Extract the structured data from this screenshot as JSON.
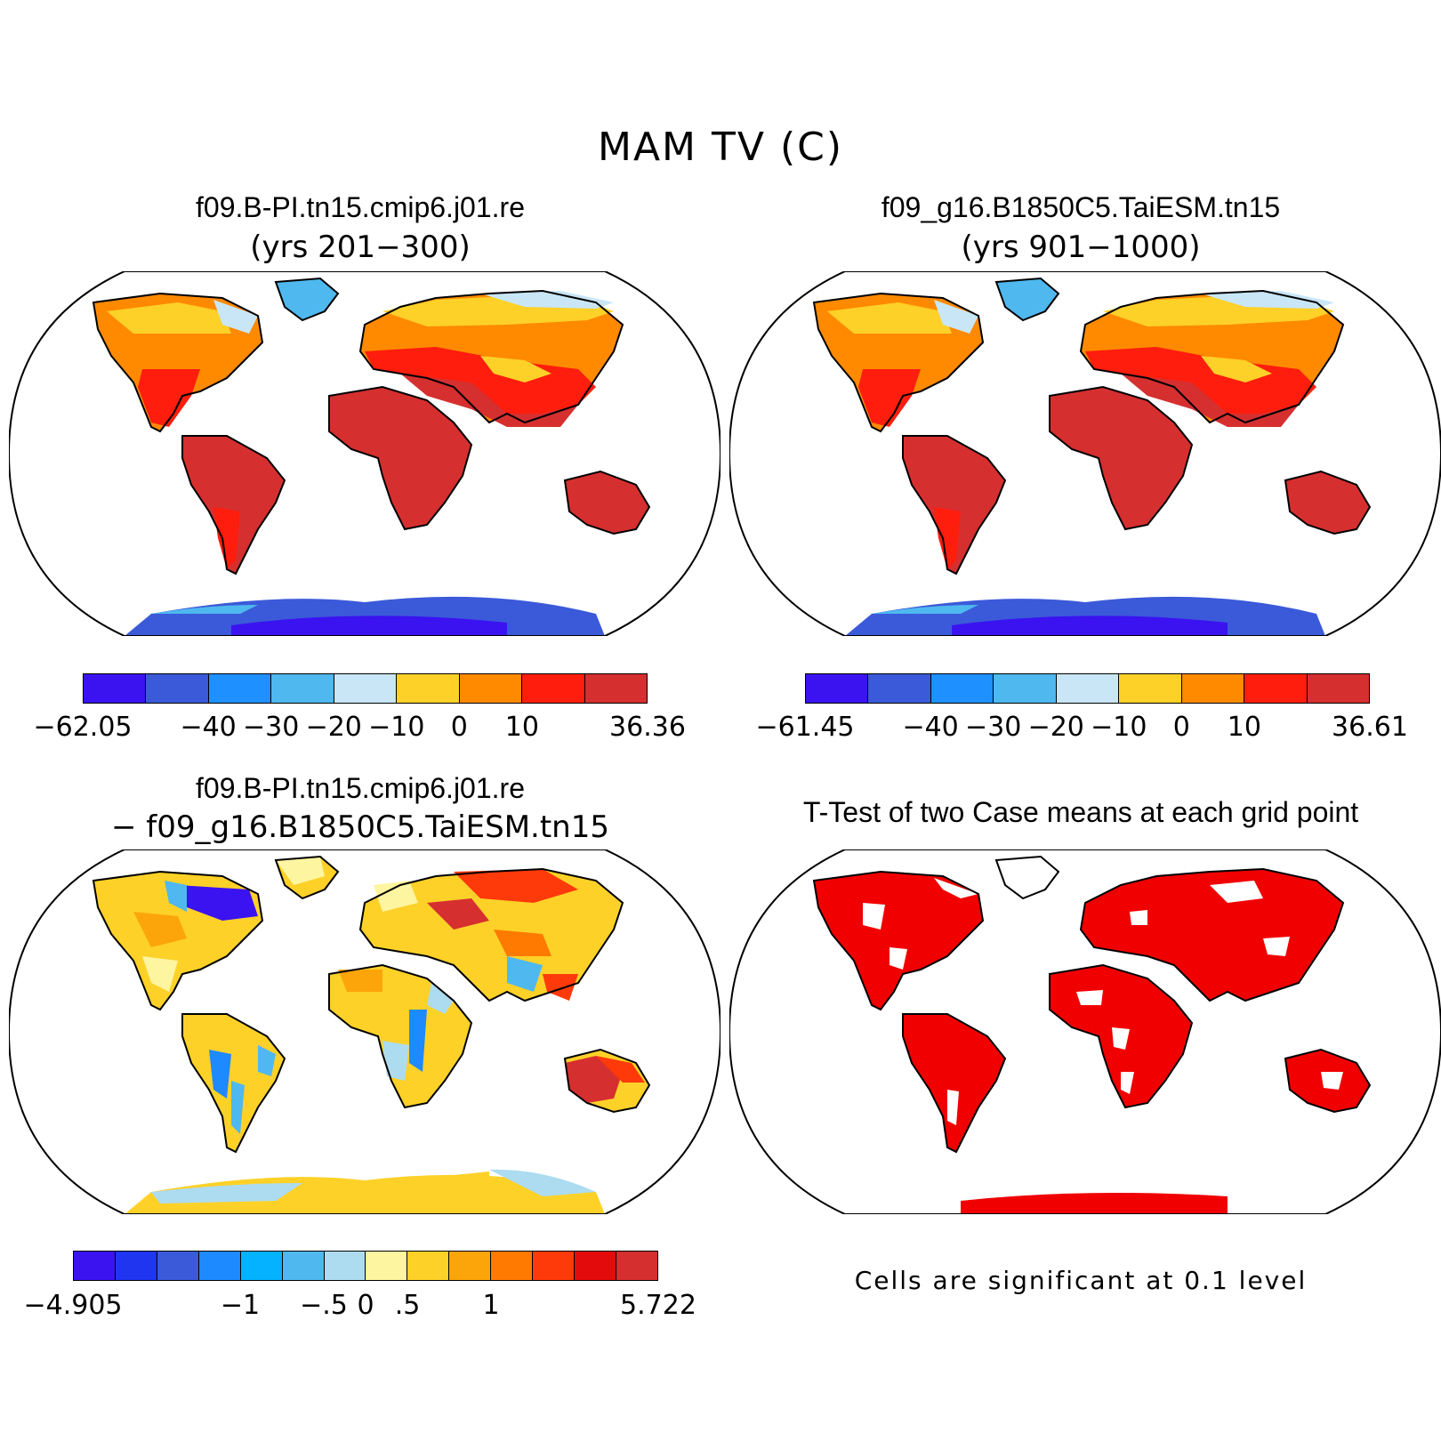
{
  "figure": {
    "title": "MAM TV (C)"
  },
  "panels": [
    {
      "id": "case1",
      "title": "f09.B-PI.tn15.cmip6.j01.re",
      "subtitle": "(yrs 201−300)",
      "colorbar": {
        "colors": [
          "#3a13f0",
          "#3b5ad9",
          "#1e90ff",
          "#4fb8ef",
          "#c8e6f6",
          "#fdd128",
          "#ff8a00",
          "#ff1d0d",
          "#d62f2f"
        ],
        "labels": [
          "−62.05",
          "−40",
          "−30",
          "−20",
          "−10",
          "0",
          "10",
          "36.36"
        ]
      }
    },
    {
      "id": "case2",
      "title": "f09_g16.B1850C5.TaiESM.tn15",
      "subtitle": "(yrs 901−1000)",
      "colorbar": {
        "colors": [
          "#3a13f0",
          "#3b5ad9",
          "#1e90ff",
          "#4fb8ef",
          "#c8e6f6",
          "#fdd128",
          "#ff8a00",
          "#ff1d0d",
          "#d62f2f"
        ],
        "labels": [
          "−61.45",
          "−40",
          "−30",
          "−20",
          "−10",
          "0",
          "10",
          "36.61"
        ]
      }
    },
    {
      "id": "difference",
      "title": "f09.B-PI.tn15.cmip6.j01.re",
      "subtitle": "− f09_g16.B1850C5.TaiESM.tn15",
      "colorbar": {
        "colors": [
          "#3a13f0",
          "#1f35f0",
          "#3b5ad9",
          "#1e8aff",
          "#04b2ff",
          "#4fb8ef",
          "#addcf0",
          "#fef5a0",
          "#fdd128",
          "#fca50a",
          "#ff7a00",
          "#ff3a0a",
          "#e30b0b",
          "#d62f2f"
        ],
        "labels": [
          "−4.905",
          "−1",
          "−.5",
          "0",
          ".5",
          "1",
          "5.722"
        ]
      }
    },
    {
      "id": "ttest",
      "title": "T-Test of two Case means at each grid point",
      "note": "Cells are significant at 0.1 level"
    }
  ]
}
